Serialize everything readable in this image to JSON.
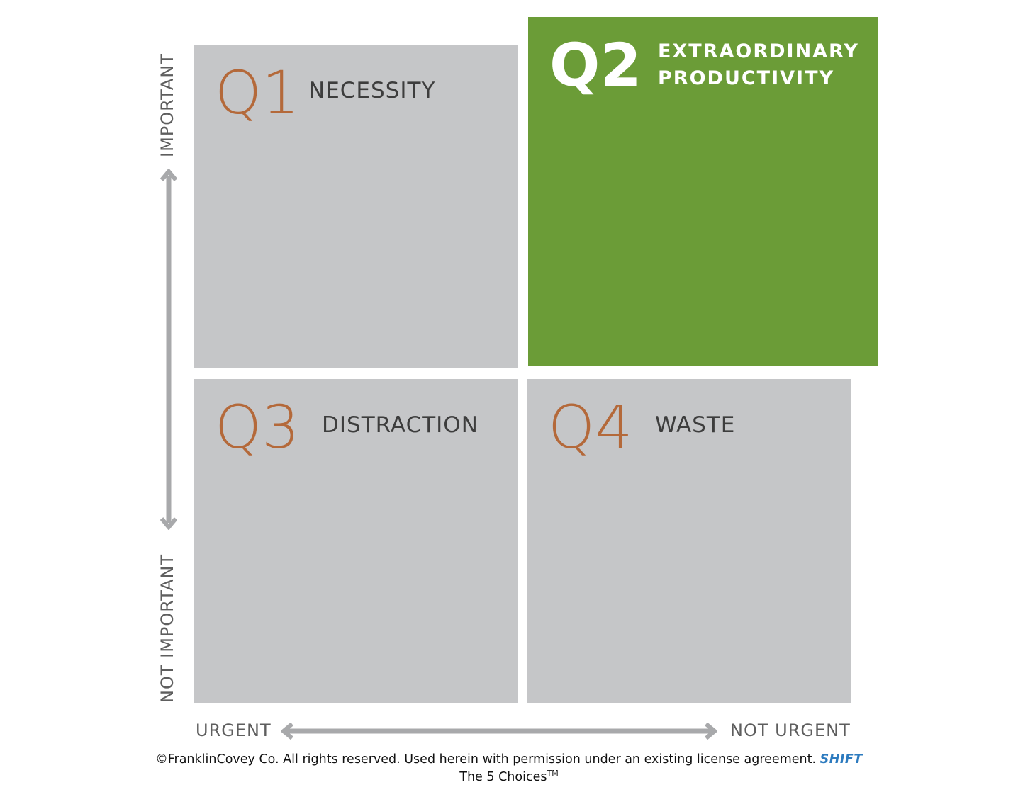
{
  "quadrants": {
    "q1": {
      "number": "Q1",
      "label": "NECESSITY"
    },
    "q2": {
      "number": "Q2",
      "label_line1": "EXTRAORDINARY",
      "label_line2": "PRODUCTIVITY"
    },
    "q3": {
      "number": "Q3",
      "label": "DISTRACTION"
    },
    "q4": {
      "number": "Q4",
      "label": "WASTE"
    }
  },
  "axes": {
    "vertical_top": "IMPORTANT",
    "vertical_bottom": "NOT IMPORTANT",
    "horizontal_left": "URGENT",
    "horizontal_right": "NOT URGENT"
  },
  "footer": {
    "copyright": "©FranklinCovey Co. All rights reserved. Used herein with permission under an existing license agreement.",
    "brand": "SHIFT",
    "subtitle": "The 5 Choices",
    "trademark": "TM"
  },
  "colors": {
    "quadrant_gray": "#c5c6c8",
    "quadrant_green": "#6b9c37",
    "number_orange": "#b4693a",
    "label_dark": "#3d3d3d",
    "axis_gray": "#5e5e5e",
    "arrow_gray": "#a8a9ab",
    "brand_blue": "#2d7bbf"
  }
}
